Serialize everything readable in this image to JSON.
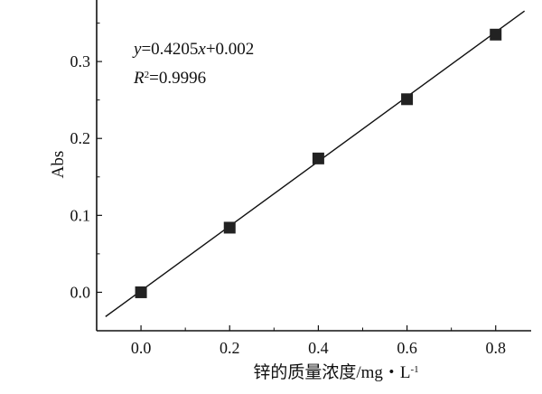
{
  "chart_data": {
    "type": "scatter",
    "xlabel": "锌的质量浓度/mg・L",
    "xlabel_sup": "-1",
    "ylabel": "Abs",
    "xlim": [
      -0.1,
      0.88
    ],
    "ylim": [
      -0.05,
      0.38
    ],
    "xticks": [
      0.0,
      0.2,
      0.4,
      0.6,
      0.8
    ],
    "xtick_labels": [
      "0.0",
      "0.2",
      "0.4",
      "0.6",
      "0.8"
    ],
    "yticks": [
      0.0,
      0.1,
      0.2,
      0.3
    ],
    "ytick_labels": [
      "0.0",
      "0.1",
      "0.2",
      "0.3"
    ],
    "grid": false,
    "points": [
      {
        "x": 0.0,
        "y": 0.0
      },
      {
        "x": 0.2,
        "y": 0.084
      },
      {
        "x": 0.4,
        "y": 0.174
      },
      {
        "x": 0.6,
        "y": 0.251
      },
      {
        "x": 0.8,
        "y": 0.335
      }
    ],
    "fit": {
      "slope": 0.4205,
      "intercept": 0.002,
      "x_range": [
        -0.08,
        0.865
      ]
    },
    "annotation": {
      "equation": "y=0.4205x+0.002",
      "r2_prefix": "R",
      "r2_sup": "2",
      "r2_value": "=0.9996"
    },
    "marker": "square",
    "color": "#222222"
  }
}
